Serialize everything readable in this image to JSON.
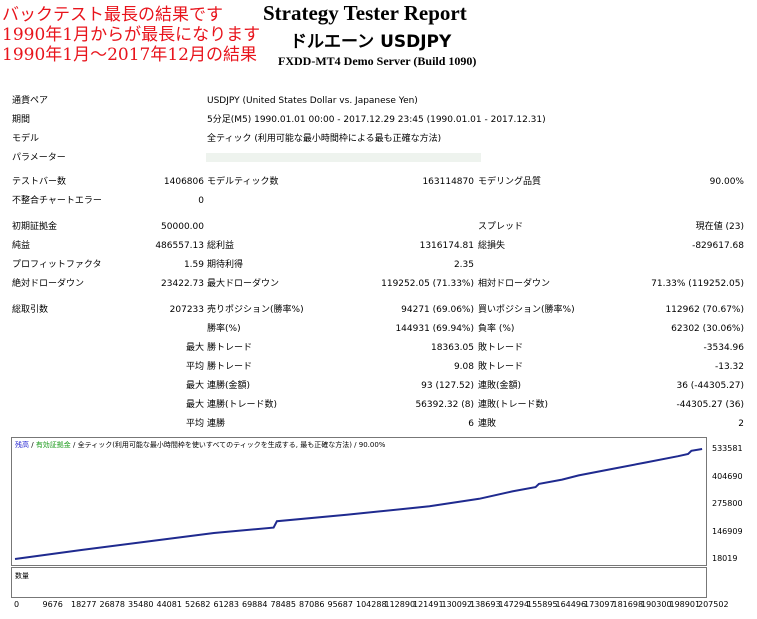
{
  "annotation": {
    "line1": "バックテスト最長の結果です",
    "line2": "1990年1月からが最長になります",
    "line3": "1990年1月～2017年12月の結果"
  },
  "header": {
    "title": "Strategy Tester Report",
    "subtitle": "ドルエーン USDJPY",
    "server": "FXDD-MT4 Demo Server (Build 1090)"
  },
  "info": {
    "symbol_label": "通貨ペア",
    "symbol_value": "USDJPY (United States Dollar vs. Japanese Yen)",
    "period_label": "期間",
    "period_value": "5分足(M5) 1990.01.01 00:00 - 2017.12.29 23:45 (1990.01.01 - 2017.12.31)",
    "model_label": "モデル",
    "model_value": "全ティック (利用可能な最小時間枠による最も正確な方法)",
    "params_label": "パラメーター"
  },
  "stats": {
    "bars_label": "テストバー数",
    "bars_value": "1406806",
    "ticks_label": "モデルティック数",
    "ticks_value": "163114870",
    "quality_label": "モデリング品質",
    "quality_value": "90.00%",
    "mismatch_label": "不整合チャートエラー",
    "mismatch_value": "0",
    "deposit_label": "初期証拠金",
    "deposit_value": "50000.00",
    "spread_label": "スプレッド",
    "spread_value": "現在値 (23)",
    "net_label": "純益",
    "net_value": "486557.13",
    "gross_profit_label": "総利益",
    "gross_profit_value": "1316174.81",
    "gross_loss_label": "総損失",
    "gross_loss_value": "-829617.68",
    "pf_label": "プロフィットファクタ",
    "pf_value": "1.59",
    "expected_label": "期待利得",
    "expected_value": "2.35",
    "abs_dd_label": "絶対ドローダウン",
    "abs_dd_value": "23422.73",
    "max_dd_label": "最大ドローダウン",
    "max_dd_value": "119252.05 (71.33%)",
    "rel_dd_label": "相対ドローダウン",
    "rel_dd_value": "71.33% (119252.05)",
    "trades_label": "総取引数",
    "trades_value": "207233",
    "short_label": "売りポジション(勝率%)",
    "short_value": "94271 (69.06%)",
    "long_label": "買いポジション(勝率%)",
    "long_value": "112962 (70.67%)",
    "winrate_label": "勝率(%)",
    "winrate_value": "144931 (69.94%)",
    "lossrate_label": "負率 (%)",
    "lossrate_value": "62302 (30.06%)",
    "max_label": "最大",
    "avg_label": "平均",
    "win_trade_label": "勝トレード",
    "loss_trade_label": "敗トレード",
    "max_win_value": "18363.05",
    "max_loss_value": "-3534.96",
    "avg_win_value": "9.08",
    "avg_loss_value": "-13.32",
    "consec_win_amt_label": "連勝(金額)",
    "consec_win_amt_value": "93 (127.52)",
    "consec_loss_amt_label": "連敗(金額)",
    "consec_loss_amt_value": "36 (-44305.27)",
    "consec_win_cnt_label": "連勝(トレード数)",
    "consec_win_cnt_value": "56392.32 (8)",
    "consec_loss_cnt_label": "連敗(トレード数)",
    "consec_loss_cnt_value": "-44305.27 (36)",
    "consec_win_label": "連勝",
    "consec_win_value": "6",
    "consec_loss_label": "連敗",
    "consec_loss_value": "2"
  },
  "chart_legend": {
    "balance": "残高",
    "sep1": " / ",
    "equity": "有効証拠金",
    "sep2": " / ",
    "rest": "全ティック(利用可能な最小時間枠を使いすべてのティックを生成する, 最も正確な方法) / 90.00%",
    "volume": "数量"
  },
  "chart_data": {
    "type": "line",
    "series": [
      {
        "name": "残高",
        "x": [
          0,
          20000,
          40000,
          60000,
          78000,
          79000,
          100000,
          125000,
          140000,
          150000,
          157000,
          158000,
          165000,
          170000,
          180000,
          190000,
          200000,
          203000,
          204000,
          207233
        ],
        "y": [
          18019,
          60000,
          100000,
          140000,
          165000,
          195000,
          225000,
          265000,
          300000,
          335000,
          355000,
          370000,
          390000,
          410000,
          440000,
          470000,
          500000,
          510000,
          525000,
          533581
        ]
      }
    ],
    "yticks": [
      "533581",
      "404690",
      "275800",
      "146909",
      "18019"
    ],
    "ylim": [
      18019,
      533581
    ],
    "xticks": [
      "0",
      "9676",
      "18277",
      "26878",
      "35480",
      "44081",
      "52682",
      "61283",
      "69884",
      "78485",
      "87086",
      "95687",
      "104288",
      "112890",
      "121491",
      "130092",
      "138693",
      "147294",
      "155895",
      "164496",
      "173097",
      "181698",
      "190300",
      "198901",
      "207502"
    ],
    "xlim": [
      0,
      207502
    ],
    "grid": false,
    "line_color": "#1f2a8f"
  }
}
